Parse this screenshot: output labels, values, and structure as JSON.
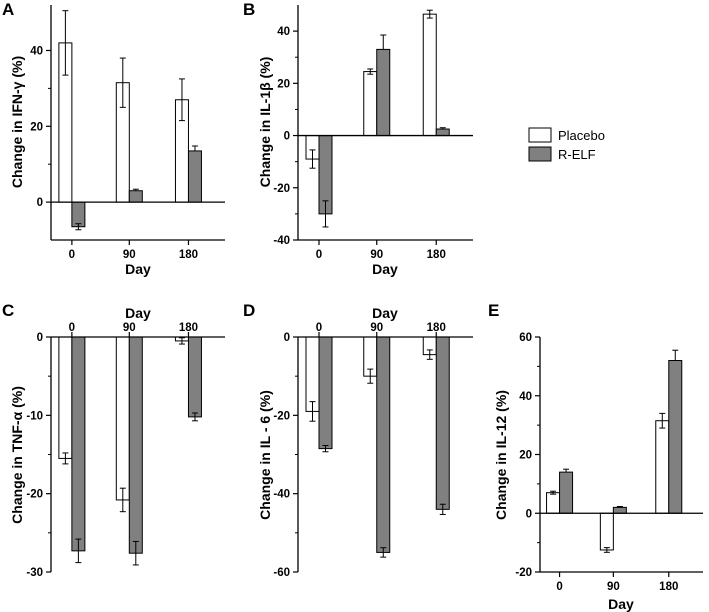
{
  "legend": {
    "entries": [
      {
        "name": "Placebo",
        "color": "#ffffff"
      },
      {
        "name": "R-ELF",
        "color": "#808080"
      }
    ],
    "placement": "right"
  },
  "colors": {
    "placebo": "#ffffff",
    "relf": "#808080",
    "axis": "#000000"
  },
  "chart_data": [
    {
      "type": "bar",
      "panel": "A",
      "categories": [
        "0",
        "90",
        "180"
      ],
      "ylabel": "Change in IFN-γ (%)",
      "xlabel": "Day",
      "xaxis_position": "bottom",
      "ylim": [
        -10,
        52
      ],
      "yticks": [
        0,
        20,
        40
      ],
      "series": [
        {
          "name": "Placebo",
          "values": [
            42,
            31.5,
            27
          ],
          "errors": [
            8.5,
            6.5,
            5.5
          ]
        },
        {
          "name": "R-ELF",
          "values": [
            -6.5,
            3,
            13.5
          ],
          "errors": [
            0.8,
            0.4,
            1.3
          ]
        }
      ]
    },
    {
      "type": "bar",
      "panel": "B",
      "categories": [
        "0",
        "90",
        "180"
      ],
      "ylabel": "Change in IL-1β (%)",
      "xlabel": "Day",
      "xaxis_position": "bottom",
      "ylim": [
        -40,
        50
      ],
      "yticks": [
        -40,
        -20,
        0,
        20,
        40
      ],
      "series": [
        {
          "name": "Placebo",
          "values": [
            -9,
            24.5,
            46.5
          ],
          "errors": [
            3.5,
            1,
            1.5
          ]
        },
        {
          "name": "R-ELF",
          "values": [
            -30,
            33,
            2.5
          ],
          "errors": [
            5,
            5.5,
            0.5
          ]
        }
      ]
    },
    {
      "type": "bar",
      "panel": "C",
      "categories": [
        "0",
        "90",
        "180"
      ],
      "ylabel": "Change in TNF-α (%)",
      "xlabel": "Day",
      "xaxis_position": "top",
      "ylim": [
        -30,
        0
      ],
      "yticks": [
        -30,
        -20,
        -10,
        0
      ],
      "series": [
        {
          "name": "Placebo",
          "values": [
            -15.5,
            -20.8,
            -0.5
          ],
          "errors": [
            0.7,
            1.5,
            0.4
          ]
        },
        {
          "name": "R-ELF",
          "values": [
            -27.3,
            -27.6,
            -10.2
          ],
          "errors": [
            1.5,
            1.5,
            0.5
          ]
        }
      ]
    },
    {
      "type": "bar",
      "panel": "D",
      "categories": [
        "0",
        "90",
        "180"
      ],
      "ylabel": "Change in IL - 6 (%)",
      "xlabel": "Day",
      "xaxis_position": "top",
      "ylim": [
        -60,
        0
      ],
      "yticks": [
        -60,
        -40,
        -20,
        0
      ],
      "series": [
        {
          "name": "Placebo",
          "values": [
            -19,
            -10,
            -4.5
          ],
          "errors": [
            2.5,
            1.8,
            1.2
          ]
        },
        {
          "name": "R-ELF",
          "values": [
            -28.5,
            -55,
            -44
          ],
          "errors": [
            0.8,
            1.2,
            1.3
          ]
        }
      ]
    },
    {
      "type": "bar",
      "panel": "E",
      "categories": [
        "0",
        "90",
        "180"
      ],
      "ylabel": "Change in IL-12  (%)",
      "xlabel": "Day",
      "xaxis_position": "bottom",
      "ylim": [
        -20,
        60
      ],
      "yticks": [
        -20,
        0,
        20,
        40,
        60
      ],
      "series": [
        {
          "name": "Placebo",
          "values": [
            7,
            -12.5,
            31.5
          ],
          "errors": [
            0.5,
            0.8,
            2.5
          ]
        },
        {
          "name": "R-ELF",
          "values": [
            14,
            2,
            52
          ],
          "errors": [
            1,
            0.3,
            3.5
          ]
        }
      ]
    }
  ]
}
